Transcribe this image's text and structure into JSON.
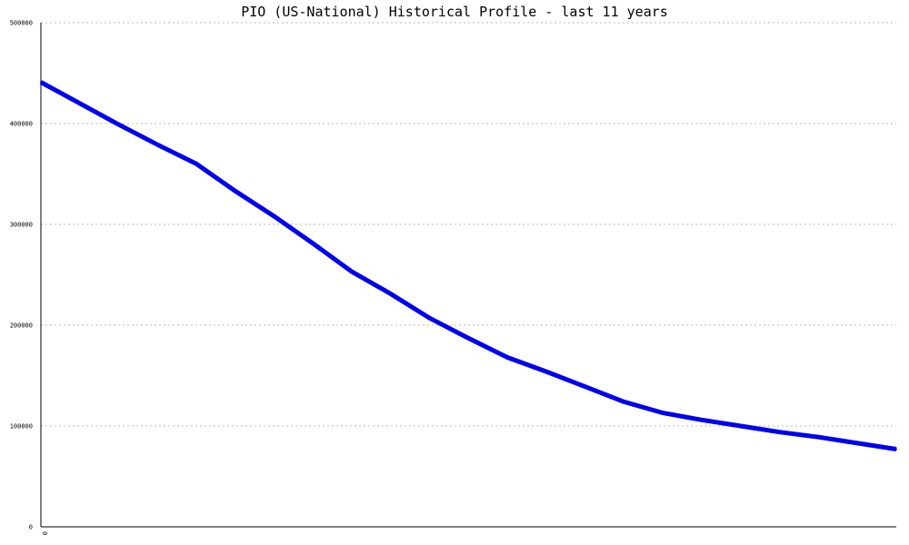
{
  "chart_data": {
    "type": "line",
    "title": "PIO (US-National) Historical Profile - last 11 years",
    "xlabel": "",
    "ylabel": "",
    "x_tick_labels": [
      "0"
    ],
    "ylim": [
      0,
      500000
    ],
    "y_ticks": [
      0,
      100000,
      200000,
      300000,
      400000,
      500000
    ],
    "y_tick_labels": [
      "0",
      "100000",
      "200000",
      "300000",
      "400000",
      "500000"
    ],
    "grid": true,
    "legend": "none",
    "series": [
      {
        "color": "#0000ee",
        "x": [
          0,
          1,
          2,
          3,
          4,
          5,
          6,
          7,
          8,
          9,
          10,
          11,
          12,
          13,
          14,
          15,
          16,
          17,
          18,
          19,
          20,
          21,
          22
        ],
        "values": [
          441000,
          420000,
          399000,
          379000,
          360000,
          333000,
          308000,
          281000,
          253000,
          231000,
          207000,
          187000,
          168000,
          154000,
          139000,
          124000,
          113000,
          106000,
          100000,
          94000,
          89000,
          83000,
          77000
        ]
      }
    ]
  }
}
